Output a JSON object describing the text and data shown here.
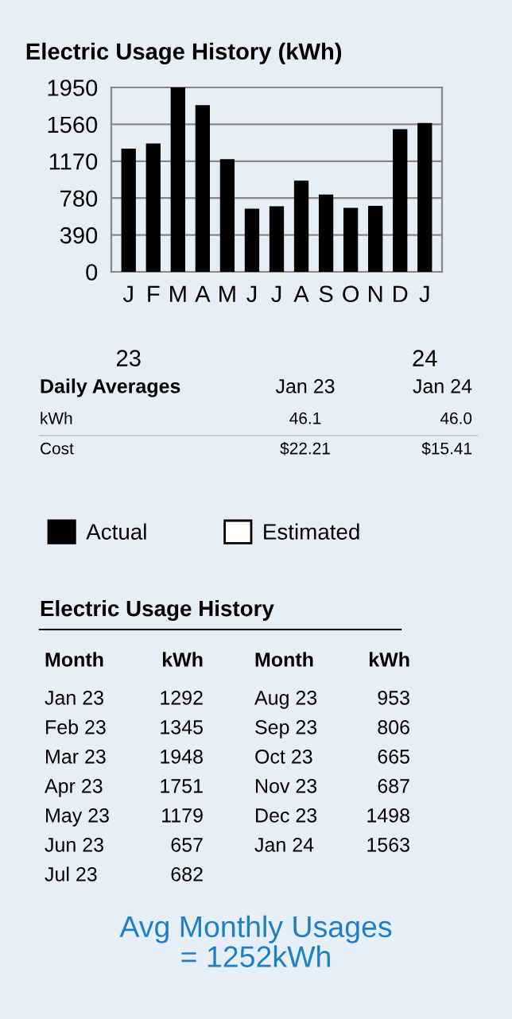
{
  "chart_data": [
    {
      "type": "bar",
      "title": "Electric Usage History (kWh)",
      "categories": [
        "J",
        "F",
        "M",
        "A",
        "M",
        "J",
        "J",
        "A",
        "S",
        "O",
        "N",
        "D",
        "J"
      ],
      "series": [
        {
          "name": "Actual",
          "color": "#000000",
          "values": [
            1292,
            1345,
            1948,
            1751,
            1179,
            657,
            682,
            953,
            806,
            665,
            687,
            1498,
            1563
          ]
        },
        {
          "name": "Estimated",
          "color": "#ffffff",
          "values": [
            null,
            null,
            null,
            null,
            null,
            null,
            null,
            null,
            null,
            null,
            null,
            null,
            null
          ]
        }
      ],
      "ylim": [
        0,
        1950
      ],
      "yticks": [
        0,
        390,
        780,
        1170,
        1560,
        1950
      ],
      "grid": "y",
      "legend": "bottom",
      "annotations": [
        "23",
        "24"
      ]
    },
    {
      "type": "other",
      "annotations": [
        "Daily Averages",
        "Jan 23",
        "Jan 24",
        "kWh",
        "46.1",
        "46.0",
        "Cost",
        "$22.21",
        "$15.41"
      ]
    },
    {
      "type": "other",
      "title": "Electric Usage History",
      "annotations": [
        "Month",
        "kWh",
        "Month",
        "kWh",
        "Jan 23",
        "1292",
        "Aug 23",
        "953",
        "Feb 23",
        "1345",
        "Sep 23",
        "806",
        "Mar 23",
        "1948",
        "Oct 23",
        "665",
        "Apr 23",
        "1751",
        "Nov 23",
        "687",
        "May 23",
        "1179",
        "Dec 23",
        "1498",
        "Jun 23",
        "657",
        "Jan 24",
        "1563",
        "Jul 23",
        "682"
      ]
    },
    {
      "type": "other",
      "title": "Avg Monthly Usages\n= 1252kWh",
      "color": "#1f7fc4"
    }
  ]
}
